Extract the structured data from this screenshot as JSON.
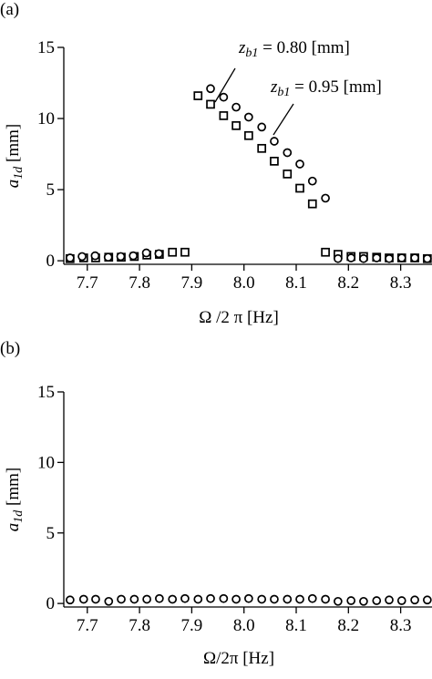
{
  "chart_data": [
    {
      "type": "scatter",
      "panel_label": "(a)",
      "x_label": "Ω /2 π  [Hz]",
      "y_label": {
        "symbol": "a",
        "subscript": "1d",
        "unit": "[mm]"
      },
      "xlim": [
        7.655,
        8.36
      ],
      "ylim": [
        -0.25,
        15
      ],
      "xticks": [
        7.7,
        7.8,
        7.9,
        {
          "value": 8.0,
          "label": "8.0"
        },
        8.1,
        8.2,
        8.3
      ],
      "yticks": [
        0,
        5,
        10,
        15
      ],
      "series": [
        {
          "marker": "square",
          "color": "#000000",
          "x": [
            7.667,
            7.693,
            7.716,
            7.741,
            7.765,
            7.79,
            7.814,
            7.838,
            7.863,
            7.887,
            7.912,
            7.936,
            7.961,
            7.985,
            8.009,
            8.034,
            8.058,
            8.083,
            8.107,
            8.131,
            8.156,
            8.18,
            8.205,
            8.229,
            8.254,
            8.278,
            8.302,
            8.327,
            8.351
          ],
          "values": [
            0.15,
            0.2,
            0.2,
            0.25,
            0.25,
            0.3,
            0.4,
            0.45,
            0.6,
            0.6,
            11.6,
            11.0,
            10.2,
            9.5,
            8.8,
            7.9,
            7.0,
            6.1,
            5.1,
            4.0,
            0.6,
            0.45,
            0.3,
            0.3,
            0.25,
            0.2,
            0.2,
            0.2,
            0.15
          ]
        },
        {
          "marker": "circle",
          "color": "#000000",
          "x": [
            7.667,
            7.69,
            7.715,
            7.74,
            7.764,
            7.788,
            7.813,
            7.837,
            7.936,
            7.961,
            7.985,
            8.009,
            8.034,
            8.058,
            8.083,
            8.107,
            8.131,
            8.156,
            8.18,
            8.205,
            8.229,
            8.254,
            8.278,
            8.302,
            8.327,
            8.351
          ],
          "values": [
            0.2,
            0.3,
            0.35,
            0.25,
            0.3,
            0.35,
            0.55,
            0.5,
            12.1,
            11.5,
            10.8,
            10.1,
            9.4,
            8.4,
            7.6,
            6.8,
            5.6,
            4.4,
            0.15,
            0.2,
            0.15,
            0.2,
            0.15,
            0.2,
            0.2,
            0.15
          ]
        }
      ],
      "annotations": [
        {
          "symbol": "z",
          "subscript": "b1",
          "text": " = 0.80 [mm]"
        },
        {
          "symbol": "z",
          "subscript": "b1",
          "text": "  = 0.95 [mm]"
        }
      ]
    },
    {
      "type": "scatter",
      "panel_label": "(b)",
      "x_label": "Ω/2π [Hz]",
      "y_label": {
        "symbol": "a",
        "subscript": "1d",
        "unit": "[mm]"
      },
      "xlim": [
        7.655,
        8.36
      ],
      "ylim": [
        -0.25,
        15
      ],
      "xticks": [
        7.7,
        7.8,
        7.9,
        {
          "value": 8.0,
          "label": "8.0"
        },
        8.1,
        8.2,
        8.3
      ],
      "yticks": [
        0,
        5,
        10,
        15
      ],
      "series": [
        {
          "marker": "circle",
          "color": "#000000",
          "x": [
            7.667,
            7.693,
            7.716,
            7.741,
            7.765,
            7.79,
            7.814,
            7.838,
            7.863,
            7.887,
            7.912,
            7.936,
            7.961,
            7.985,
            8.009,
            8.034,
            8.058,
            8.083,
            8.107,
            8.131,
            8.156,
            8.18,
            8.205,
            8.229,
            8.254,
            8.278,
            8.302,
            8.327,
            8.351
          ],
          "values": [
            0.25,
            0.3,
            0.3,
            0.15,
            0.3,
            0.3,
            0.3,
            0.35,
            0.3,
            0.35,
            0.3,
            0.35,
            0.35,
            0.3,
            0.35,
            0.3,
            0.3,
            0.3,
            0.3,
            0.35,
            0.3,
            0.15,
            0.2,
            0.15,
            0.2,
            0.25,
            0.2,
            0.25,
            0.25
          ]
        }
      ]
    }
  ]
}
